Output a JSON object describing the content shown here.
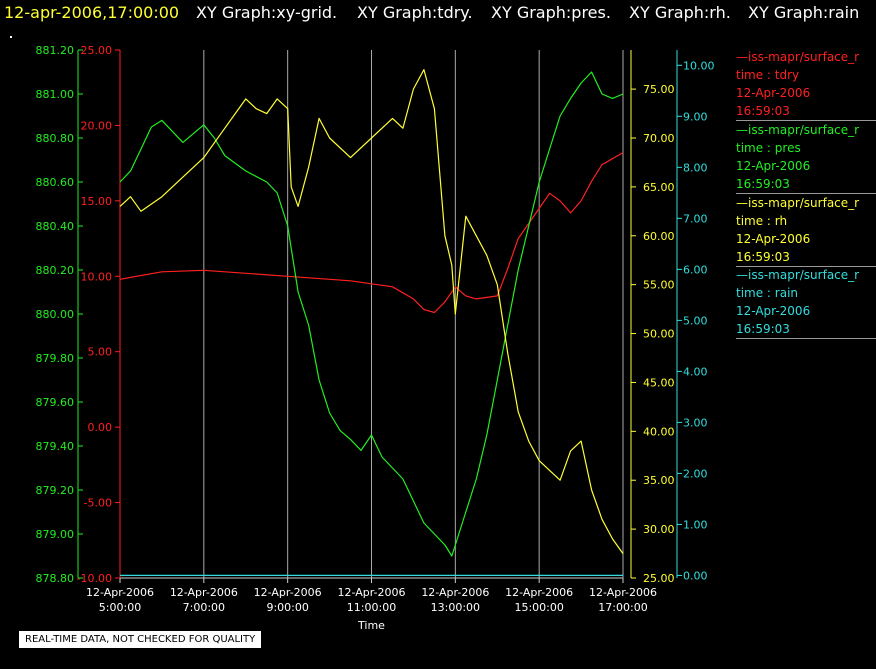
{
  "header": {
    "timestamp": "12-apr-2006,17:00:00",
    "graphs": [
      "XY Graph:xy-grid.",
      "XY Graph:tdry.",
      "XY Graph:pres.",
      "XY Graph:rh.",
      "XY Graph:rain"
    ]
  },
  "legend": [
    {
      "line": "—iss-mapr/surface_r",
      "field": "time : tdry",
      "date": "12-Apr-2006",
      "time": "16:59:03",
      "color": "#ff2020"
    },
    {
      "line": "—iss-mapr/surface_r",
      "field": "time : pres",
      "date": "12-Apr-2006",
      "time": "16:59:03",
      "color": "#22ee22"
    },
    {
      "line": "—iss-mapr/surface_r",
      "field": "time : rh",
      "date": "12-Apr-2006",
      "time": "16:59:03",
      "color": "#ffff33"
    },
    {
      "line": "—iss-mapr/surface_r",
      "field": "time : rain",
      "date": "12-Apr-2006",
      "time": "16:59:03",
      "color": "#33dddd"
    }
  ],
  "disclaimer": "REAL-TIME DATA, NOT CHECKED FOR QUALITY",
  "chart_data": {
    "type": "line",
    "xlabel": "Time",
    "xlim": [
      "2006-04-12 05:00",
      "2006-04-12 17:00"
    ],
    "x_ticks": [
      {
        "date": "12-Apr-2006",
        "time": "5:00:00"
      },
      {
        "date": "12-Apr-2006",
        "time": "7:00:00"
      },
      {
        "date": "12-Apr-2006",
        "time": "9:00:00"
      },
      {
        "date": "12-Apr-2006",
        "time": "11:00:00"
      },
      {
        "date": "12-Apr-2006",
        "time": "13:00:00"
      },
      {
        "date": "12-Apr-2006",
        "time": "15:00:00"
      },
      {
        "date": "12-Apr-2006",
        "time": "17:00:00"
      }
    ],
    "grid": "vertical",
    "axes": {
      "pres": {
        "ylim": [
          878.8,
          881.2
        ],
        "ticks": [
          "881.20",
          "881.00",
          "880.80",
          "880.60",
          "880.40",
          "880.20",
          "880.00",
          "879.80",
          "879.60",
          "879.40",
          "879.20",
          "879.00",
          "878.80"
        ],
        "color": "#22ee22"
      },
      "tdry": {
        "ylim": [
          -10,
          25
        ],
        "ticks": [
          "25.00",
          "20.00",
          "15.00",
          "10.00",
          "5.00",
          "0.00",
          "-5.00",
          "-10.00"
        ],
        "color": "#ff2020"
      },
      "rh": {
        "ylim": [
          25,
          79
        ],
        "ticks": [
          "75.00",
          "70.00",
          "65.00",
          "60.00",
          "55.00",
          "50.00",
          "45.00",
          "40.00",
          "35.00",
          "30.00",
          "25.00"
        ],
        "color": "#ffff33"
      },
      "rain": {
        "ylim": [
          -0.05,
          10.3
        ],
        "ticks": [
          "10.00",
          "9.00",
          "8.00",
          "7.00",
          "6.00",
          "5.00",
          "4.00",
          "3.00",
          "2.00",
          "1.00",
          "0.00"
        ],
        "color": "#33dddd"
      }
    },
    "series": [
      {
        "name": "time : tdry",
        "axis": "tdry",
        "color": "#ff2020",
        "x": [
          "05:00",
          "06:00",
          "07:00",
          "08:00",
          "09:00",
          "10:00",
          "10:30",
          "11:00",
          "11:30",
          "12:00",
          "12:15",
          "12:30",
          "12:45",
          "13:00",
          "13:15",
          "13:30",
          "14:00",
          "14:15",
          "14:30",
          "15:00",
          "15:15",
          "15:30",
          "15:45",
          "16:00",
          "16:15",
          "16:30",
          "17:00"
        ],
        "y": [
          9.8,
          10.3,
          10.4,
          10.2,
          10.0,
          9.8,
          9.7,
          9.5,
          9.3,
          8.5,
          7.8,
          7.6,
          8.3,
          9.3,
          8.7,
          8.5,
          8.7,
          10.5,
          12.5,
          14.5,
          15.5,
          15.0,
          14.2,
          15.0,
          16.3,
          17.4,
          18.2
        ]
      },
      {
        "name": "time : pres",
        "axis": "pres",
        "color": "#22ee22",
        "x": [
          "05:00",
          "05:15",
          "05:30",
          "05:45",
          "06:00",
          "06:15",
          "06:30",
          "07:00",
          "07:15",
          "07:30",
          "08:00",
          "08:30",
          "08:45",
          "09:00",
          "09:15",
          "09:30",
          "09:45",
          "10:00",
          "10:15",
          "10:30",
          "10:45",
          "11:00",
          "11:15",
          "11:30",
          "11:45",
          "12:00",
          "12:15",
          "12:30",
          "12:45",
          "12:55",
          "13:00",
          "13:15",
          "13:30",
          "13:45",
          "14:00",
          "14:15",
          "14:30",
          "14:45",
          "15:00",
          "15:15",
          "15:30",
          "15:45",
          "16:00",
          "16:15",
          "16:30",
          "16:45",
          "17:00"
        ],
        "y": [
          880.6,
          880.65,
          880.75,
          880.85,
          880.88,
          880.83,
          880.78,
          880.86,
          880.8,
          880.72,
          880.65,
          880.6,
          880.55,
          880.4,
          880.1,
          879.95,
          879.7,
          879.55,
          879.47,
          879.43,
          879.38,
          879.45,
          879.35,
          879.3,
          879.25,
          879.15,
          879.05,
          879.0,
          878.95,
          878.9,
          878.95,
          879.1,
          879.25,
          879.45,
          879.7,
          879.95,
          880.2,
          880.4,
          880.6,
          880.75,
          880.9,
          880.98,
          881.05,
          881.1,
          881.0,
          880.98,
          881.0
        ]
      },
      {
        "name": "time : rh",
        "axis": "rh",
        "color": "#ffff33",
        "x": [
          "05:00",
          "05:15",
          "05:30",
          "06:00",
          "06:30",
          "07:00",
          "07:30",
          "08:00",
          "08:15",
          "08:30",
          "08:45",
          "09:00",
          "09:05",
          "09:15",
          "09:30",
          "09:45",
          "10:00",
          "10:30",
          "11:00",
          "11:30",
          "11:45",
          "12:00",
          "12:15",
          "12:30",
          "12:45",
          "12:55",
          "13:00",
          "13:15",
          "13:30",
          "13:45",
          "14:00",
          "14:15",
          "14:30",
          "14:45",
          "15:00",
          "15:15",
          "15:30",
          "15:45",
          "16:00",
          "16:15",
          "16:30",
          "16:45",
          "17:00"
        ],
        "y": [
          63,
          64,
          62.5,
          64,
          66,
          68,
          71,
          74,
          73,
          72.5,
          74,
          73,
          65,
          63,
          67,
          72,
          70,
          68,
          70,
          72,
          71,
          75,
          77,
          73,
          60,
          57,
          52,
          62,
          60,
          58,
          55,
          48,
          42,
          39,
          37,
          36,
          35,
          38,
          39,
          34,
          31,
          29,
          27.5
        ]
      },
      {
        "name": "time : rain",
        "axis": "rain",
        "color": "#33dddd",
        "x": [
          "05:00",
          "17:00"
        ],
        "y": [
          0.0,
          0.0
        ]
      }
    ]
  }
}
